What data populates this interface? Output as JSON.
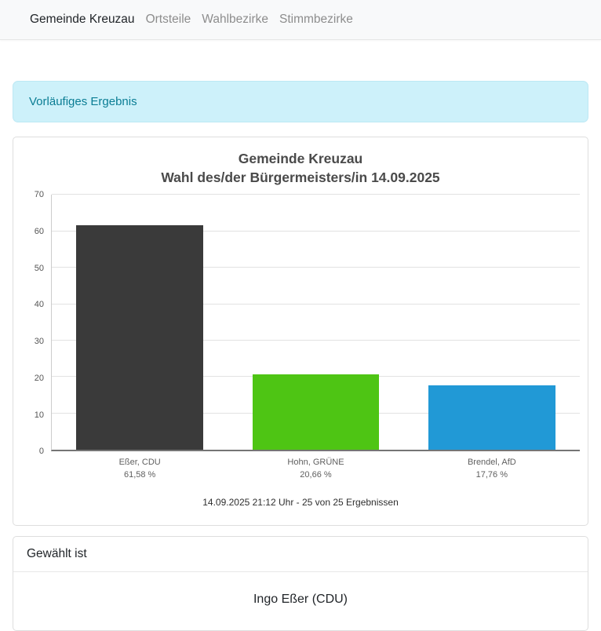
{
  "nav": {
    "items": [
      {
        "label": "Gemeinde Kreuzau",
        "active": true
      },
      {
        "label": "Ortsteile",
        "active": false
      },
      {
        "label": "Wahlbezirke",
        "active": false
      },
      {
        "label": "Stimmbezirke",
        "active": false
      }
    ]
  },
  "alert": {
    "text": "Vorläufiges Ergebnis"
  },
  "chart_data": {
    "type": "bar",
    "title": "Gemeinde Kreuzau",
    "subtitle": "Wahl des/der Bürgermeisters/in 14.09.2025",
    "categories": [
      "Eßer, CDU",
      "Hohn, GRÜNE",
      "Brendel, AfD"
    ],
    "values": [
      61.58,
      20.66,
      17.76
    ],
    "value_labels": [
      "61,58 %",
      "20,66 %",
      "17,76 %"
    ],
    "bar_colors": [
      "#3a3a3a",
      "#4ec514",
      "#2199d6"
    ],
    "ylim": [
      0,
      70
    ],
    "yticks": [
      0,
      10,
      20,
      30,
      40,
      50,
      60,
      70
    ],
    "grid": true,
    "legend": false,
    "footer": "14.09.2025 21:12 Uhr - 25 von 25 Ergebnissen"
  },
  "result": {
    "header": "Gewählt ist",
    "winner": "Ingo Eßer (CDU)"
  }
}
